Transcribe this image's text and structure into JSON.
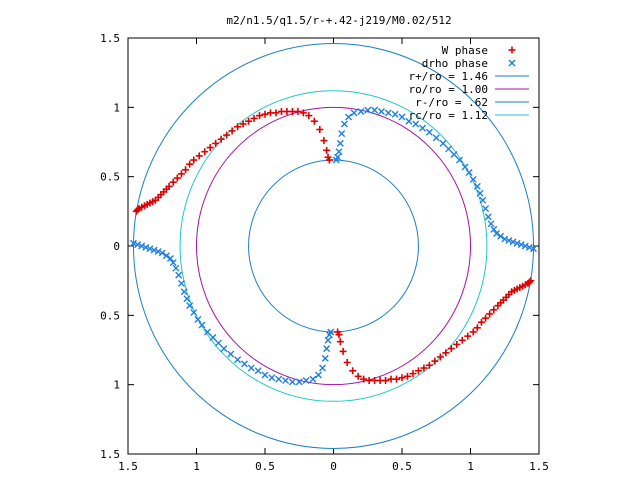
{
  "chart_data": {
    "type": "scatter",
    "title": "m2/n1.5/q1.5/r-+.42-j219/M0.02/512",
    "xlim": [
      -1.5,
      1.5
    ],
    "ylim": [
      -1.5,
      1.5
    ],
    "grid": false,
    "legend_position": "top-right",
    "x_ticks": [
      {
        "value": -1.5,
        "label": "1.5"
      },
      {
        "value": -1.0,
        "label": "1"
      },
      {
        "value": -0.5,
        "label": "0.5"
      },
      {
        "value": 0.0,
        "label": "0"
      },
      {
        "value": 0.5,
        "label": "0.5"
      },
      {
        "value": 1.0,
        "label": "1"
      },
      {
        "value": 1.5,
        "label": "1.5"
      }
    ],
    "y_ticks": [
      {
        "value": 1.5,
        "label": "1.5"
      },
      {
        "value": 1.0,
        "label": "1"
      },
      {
        "value": 0.5,
        "label": "0.5"
      },
      {
        "value": 0.0,
        "label": "0"
      },
      {
        "value": -0.5,
        "label": "0.5"
      },
      {
        "value": -1.0,
        "label": "1"
      },
      {
        "value": -1.5,
        "label": "1.5"
      }
    ],
    "circles": [
      {
        "name": "r+/ro = 1.46",
        "radius": 1.46,
        "color": "#1b7fc4"
      },
      {
        "name": "ro/ro = 1.00",
        "radius": 1.0,
        "color": "#a313a3"
      },
      {
        "name": "r-/ro = .62",
        "radius": 0.62,
        "color": "#1b7fc4"
      },
      {
        "name": "rc/ro = 1.12",
        "radius": 1.12,
        "color": "#1ec8c8"
      }
    ],
    "series": [
      {
        "name": "W phase",
        "marker": "+",
        "color": "#e00000",
        "points": [
          [
            -1.44,
            0.25
          ],
          [
            -1.43,
            0.26
          ],
          [
            -1.42,
            0.27
          ],
          [
            -1.4,
            0.28
          ],
          [
            -1.38,
            0.29
          ],
          [
            -1.36,
            0.3
          ],
          [
            -1.34,
            0.31
          ],
          [
            -1.32,
            0.32
          ],
          [
            -1.3,
            0.33
          ],
          [
            -1.28,
            0.35
          ],
          [
            -1.26,
            0.37
          ],
          [
            -1.24,
            0.39
          ],
          [
            -1.22,
            0.41
          ],
          [
            -1.2,
            0.43
          ],
          [
            -1.17,
            0.46
          ],
          [
            -1.14,
            0.49
          ],
          [
            -1.11,
            0.52
          ],
          [
            -1.08,
            0.55
          ],
          [
            -1.05,
            0.59
          ],
          [
            -1.02,
            0.62
          ],
          [
            -0.98,
            0.65
          ],
          [
            -0.94,
            0.68
          ],
          [
            -0.9,
            0.71
          ],
          [
            -0.86,
            0.74
          ],
          [
            -0.82,
            0.77
          ],
          [
            -0.78,
            0.8
          ],
          [
            -0.74,
            0.83
          ],
          [
            -0.7,
            0.86
          ],
          [
            -0.66,
            0.88
          ],
          [
            -0.62,
            0.9
          ],
          [
            -0.58,
            0.92
          ],
          [
            -0.54,
            0.94
          ],
          [
            -0.5,
            0.95
          ],
          [
            -0.46,
            0.96
          ],
          [
            -0.42,
            0.96
          ],
          [
            -0.38,
            0.97
          ],
          [
            -0.34,
            0.97
          ],
          [
            -0.3,
            0.97
          ],
          [
            -0.26,
            0.97
          ],
          [
            -0.22,
            0.96
          ],
          [
            -0.18,
            0.94
          ],
          [
            -0.14,
            0.9
          ],
          [
            -0.1,
            0.84
          ],
          [
            -0.07,
            0.76
          ],
          [
            -0.05,
            0.69
          ],
          [
            -0.04,
            0.64
          ],
          [
            -0.03,
            0.62
          ],
          [
            1.44,
            -0.25
          ],
          [
            1.43,
            -0.26
          ],
          [
            1.42,
            -0.27
          ],
          [
            1.4,
            -0.28
          ],
          [
            1.38,
            -0.29
          ],
          [
            1.36,
            -0.3
          ],
          [
            1.34,
            -0.31
          ],
          [
            1.32,
            -0.32
          ],
          [
            1.3,
            -0.33
          ],
          [
            1.28,
            -0.35
          ],
          [
            1.26,
            -0.37
          ],
          [
            1.24,
            -0.39
          ],
          [
            1.22,
            -0.41
          ],
          [
            1.2,
            -0.43
          ],
          [
            1.17,
            -0.46
          ],
          [
            1.14,
            -0.49
          ],
          [
            1.11,
            -0.52
          ],
          [
            1.08,
            -0.55
          ],
          [
            1.05,
            -0.59
          ],
          [
            1.02,
            -0.62
          ],
          [
            0.98,
            -0.65
          ],
          [
            0.94,
            -0.68
          ],
          [
            0.9,
            -0.71
          ],
          [
            0.86,
            -0.74
          ],
          [
            0.82,
            -0.77
          ],
          [
            0.78,
            -0.8
          ],
          [
            0.74,
            -0.83
          ],
          [
            0.7,
            -0.86
          ],
          [
            0.66,
            -0.88
          ],
          [
            0.62,
            -0.9
          ],
          [
            0.58,
            -0.92
          ],
          [
            0.54,
            -0.94
          ],
          [
            0.5,
            -0.95
          ],
          [
            0.46,
            -0.96
          ],
          [
            0.42,
            -0.96
          ],
          [
            0.38,
            -0.97
          ],
          [
            0.34,
            -0.97
          ],
          [
            0.3,
            -0.97
          ],
          [
            0.26,
            -0.97
          ],
          [
            0.22,
            -0.96
          ],
          [
            0.18,
            -0.94
          ],
          [
            0.14,
            -0.9
          ],
          [
            0.1,
            -0.84
          ],
          [
            0.07,
            -0.76
          ],
          [
            0.05,
            -0.69
          ],
          [
            0.04,
            -0.64
          ],
          [
            0.03,
            -0.62
          ]
        ]
      },
      {
        "name": "drho phase",
        "marker": "x",
        "color": "#1f7fe0",
        "points": [
          [
            -1.46,
            0.02
          ],
          [
            -1.43,
            0.01
          ],
          [
            -1.4,
            0.0
          ],
          [
            -1.37,
            -0.01
          ],
          [
            -1.34,
            -0.02
          ],
          [
            -1.31,
            -0.03
          ],
          [
            -1.28,
            -0.04
          ],
          [
            -1.25,
            -0.05
          ],
          [
            -1.22,
            -0.07
          ],
          [
            -1.19,
            -0.09
          ],
          [
            -1.17,
            -0.12
          ],
          [
            -1.15,
            -0.16
          ],
          [
            -1.13,
            -0.21
          ],
          [
            -1.11,
            -0.27
          ],
          [
            -1.09,
            -0.33
          ],
          [
            -1.07,
            -0.38
          ],
          [
            -1.05,
            -0.43
          ],
          [
            -1.02,
            -0.48
          ],
          [
            -0.99,
            -0.53
          ],
          [
            -0.96,
            -0.57
          ],
          [
            -0.92,
            -0.62
          ],
          [
            -0.88,
            -0.66
          ],
          [
            -0.84,
            -0.7
          ],
          [
            -0.8,
            -0.74
          ],
          [
            -0.75,
            -0.78
          ],
          [
            -0.7,
            -0.82
          ],
          [
            -0.65,
            -0.85
          ],
          [
            -0.6,
            -0.88
          ],
          [
            -0.55,
            -0.9
          ],
          [
            -0.5,
            -0.93
          ],
          [
            -0.45,
            -0.95
          ],
          [
            -0.4,
            -0.96
          ],
          [
            -0.35,
            -0.97
          ],
          [
            -0.3,
            -0.98
          ],
          [
            -0.25,
            -0.98
          ],
          [
            -0.2,
            -0.97
          ],
          [
            -0.15,
            -0.96
          ],
          [
            -0.11,
            -0.93
          ],
          [
            -0.08,
            -0.88
          ],
          [
            -0.06,
            -0.81
          ],
          [
            -0.05,
            -0.74
          ],
          [
            -0.04,
            -0.68
          ],
          [
            -0.03,
            -0.64
          ],
          [
            -0.02,
            -0.62
          ],
          [
            1.46,
            -0.02
          ],
          [
            1.43,
            -0.01
          ],
          [
            1.4,
            0.0
          ],
          [
            1.37,
            0.01
          ],
          [
            1.34,
            0.02
          ],
          [
            1.31,
            0.03
          ],
          [
            1.28,
            0.04
          ],
          [
            1.25,
            0.05
          ],
          [
            1.22,
            0.07
          ],
          [
            1.19,
            0.09
          ],
          [
            1.17,
            0.12
          ],
          [
            1.15,
            0.16
          ],
          [
            1.13,
            0.21
          ],
          [
            1.11,
            0.27
          ],
          [
            1.09,
            0.33
          ],
          [
            1.07,
            0.38
          ],
          [
            1.05,
            0.43
          ],
          [
            1.02,
            0.48
          ],
          [
            0.99,
            0.53
          ],
          [
            0.96,
            0.57
          ],
          [
            0.92,
            0.62
          ],
          [
            0.88,
            0.66
          ],
          [
            0.84,
            0.7
          ],
          [
            0.8,
            0.74
          ],
          [
            0.75,
            0.78
          ],
          [
            0.7,
            0.82
          ],
          [
            0.65,
            0.85
          ],
          [
            0.6,
            0.88
          ],
          [
            0.55,
            0.9
          ],
          [
            0.5,
            0.93
          ],
          [
            0.45,
            0.95
          ],
          [
            0.4,
            0.96
          ],
          [
            0.35,
            0.97
          ],
          [
            0.3,
            0.98
          ],
          [
            0.25,
            0.98
          ],
          [
            0.2,
            0.97
          ],
          [
            0.15,
            0.96
          ],
          [
            0.11,
            0.93
          ],
          [
            0.08,
            0.88
          ],
          [
            0.06,
            0.81
          ],
          [
            0.05,
            0.74
          ],
          [
            0.04,
            0.68
          ],
          [
            0.03,
            0.64
          ],
          [
            0.02,
            0.62
          ]
        ]
      }
    ]
  }
}
